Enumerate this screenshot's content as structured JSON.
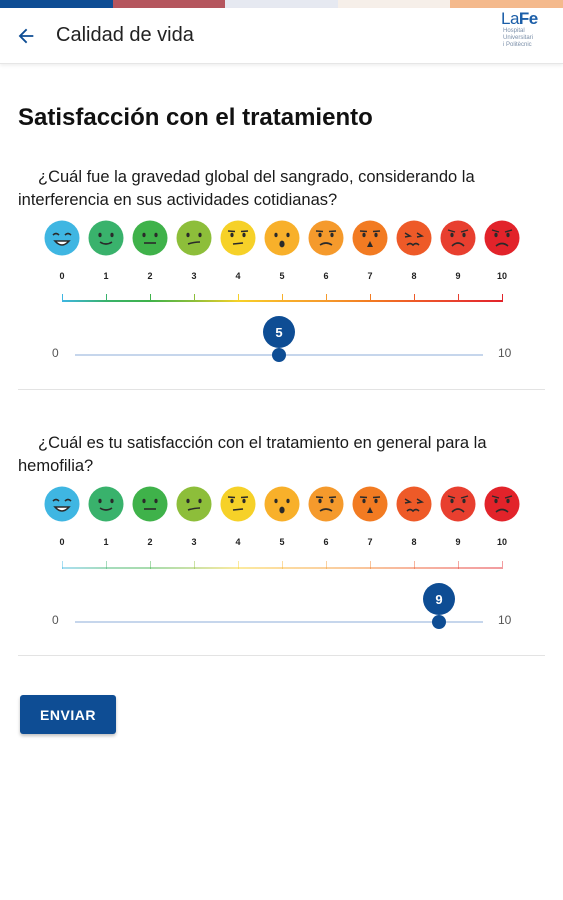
{
  "top_strip_colors": [
    "#0e4d94",
    "#b5565e",
    "#e6e9f1",
    "#f6efe9",
    "#f4b98c"
  ],
  "app_bar": {
    "title": "Calidad de vida",
    "back_icon": "arrow-left-icon",
    "logo": {
      "main_la": "La",
      "main_fe": "Fe",
      "sub_lines": [
        "Hospital",
        "Universitari",
        "i Politècnic"
      ]
    }
  },
  "page_title": "Satisfacción con el tratamiento",
  "scale_labels": [
    "0",
    "1",
    "2",
    "3",
    "4",
    "5",
    "6",
    "7",
    "8",
    "9",
    "10"
  ],
  "face_colors": [
    "#3fb6e2",
    "#39b26c",
    "#3fb24a",
    "#8dbe3a",
    "#f6d128",
    "#f8b02a",
    "#f59a2c",
    "#f27b22",
    "#ee5a28",
    "#e83f2f",
    "#e2232a"
  ],
  "face_icons": [
    "face-laughing-icon",
    "face-smiling-icon",
    "face-content-icon",
    "face-smirk-icon",
    "face-annoyed-icon",
    "face-surprised-icon",
    "face-worried-icon",
    "face-upset-icon",
    "face-distressed-icon",
    "face-sad-icon",
    "face-angry-icon"
  ],
  "questions": [
    {
      "text": "¿Cuál fue la gravedad global del sangrado, considerando la interferencia en sus actividades cotidianas?",
      "slider": {
        "min_label": "0",
        "max_label": "10",
        "min": 0,
        "max": 10,
        "value": 5,
        "value_label": "5"
      }
    },
    {
      "text": "¿Cuál es tu satisfacción con el tratamiento en general para la hemofilia?",
      "slider": {
        "min_label": "0",
        "max_label": "10",
        "min": 0,
        "max": 10,
        "value": 9,
        "value_label": "9"
      }
    }
  ],
  "submit_label": "ENVIAR",
  "accent_color": "#0e4d94"
}
